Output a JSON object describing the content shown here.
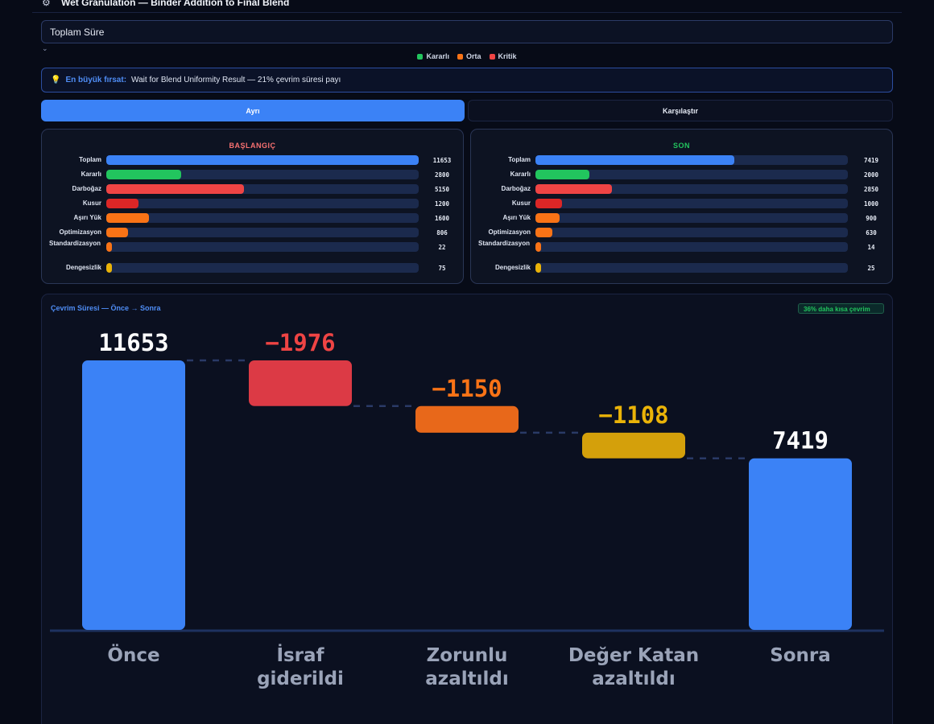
{
  "header": {
    "title": "Wet Granulation — Binder Addition to Final Blend",
    "icon": "process-flow-icon"
  },
  "metric_select": {
    "value": "Toplam Süre"
  },
  "legend": [
    {
      "label": "Kararlı",
      "color": "#22c55e"
    },
    {
      "label": "Orta",
      "color": "#f97316"
    },
    {
      "label": "Kritik",
      "color": "#ef4444"
    }
  ],
  "insight": {
    "lead": "En büyük fırsat:",
    "text": "Wait for Blend Uniformity Result — 21% çevrim süresi payı"
  },
  "tabs": [
    {
      "label": "Ayrı",
      "active": true
    },
    {
      "label": "Karşılaştır",
      "active": false
    }
  ],
  "panels": {
    "start": {
      "title": "BAŞLANGIÇ",
      "title_color": "#f87171",
      "max": 11653,
      "rows": [
        {
          "label": "Toplam",
          "value": 11653,
          "color": "#3b82f6"
        },
        {
          "label": "Kararlı",
          "value": 2800,
          "color": "#22c55e"
        },
        {
          "label": "Darboğaz",
          "value": 5150,
          "color": "#ef4444"
        },
        {
          "label": "Kusur",
          "value": 1200,
          "color": "#dc2626"
        },
        {
          "label": "Aşırı Yük",
          "value": 1600,
          "color": "#f97316"
        },
        {
          "label": "Optimizasyon",
          "value": 806,
          "color": "#f97316"
        },
        {
          "label": "Standardizasyon",
          "value": 22,
          "color": "#f97316"
        },
        {
          "label": "Dengesizlik",
          "value": 75,
          "color": "#eab308"
        }
      ]
    },
    "end": {
      "title": "SON",
      "title_color": "#22c55e",
      "max": 11653,
      "rows": [
        {
          "label": "Toplam",
          "value": 7419,
          "color": "#3b82f6"
        },
        {
          "label": "Kararlı",
          "value": 2000,
          "color": "#22c55e"
        },
        {
          "label": "Darboğaz",
          "value": 2850,
          "color": "#ef4444"
        },
        {
          "label": "Kusur",
          "value": 1000,
          "color": "#dc2626"
        },
        {
          "label": "Aşırı Yük",
          "value": 900,
          "color": "#f97316"
        },
        {
          "label": "Optimizasyon",
          "value": 630,
          "color": "#f97316"
        },
        {
          "label": "Standardizasyon",
          "value": 14,
          "color": "#f97316"
        },
        {
          "label": "Dengesizlik",
          "value": 25,
          "color": "#eab308"
        }
      ]
    }
  },
  "waterfall": {
    "title": "Çevrim Süresi — Önce → Sonra",
    "badge": "36% daha kısa çevrim"
  },
  "chart_data": {
    "type": "bar",
    "subtype": "waterfall",
    "title": "Çevrim Süresi — Önce → Sonra",
    "categories": [
      "Önce",
      "İsraf giderildi",
      "Zorunlu azaltıldı",
      "Değer Katan azaltıldı",
      "Sonra"
    ],
    "values": [
      11653,
      -1976,
      -1150,
      -1108,
      7419
    ],
    "value_labels": [
      "11653",
      "−1976",
      "−1150",
      "−1108",
      "7419"
    ],
    "bar_kinds": [
      "total",
      "delta",
      "delta",
      "delta",
      "total"
    ],
    "colors": [
      "#3b82f6",
      "#dc3a45",
      "#e8681a",
      "#d4a00b",
      "#3b82f6"
    ],
    "label_colors": [
      "#ffffff",
      "#ef4444",
      "#f97316",
      "#eab308",
      "#ffffff"
    ],
    "ylim": [
      0,
      11653
    ]
  }
}
